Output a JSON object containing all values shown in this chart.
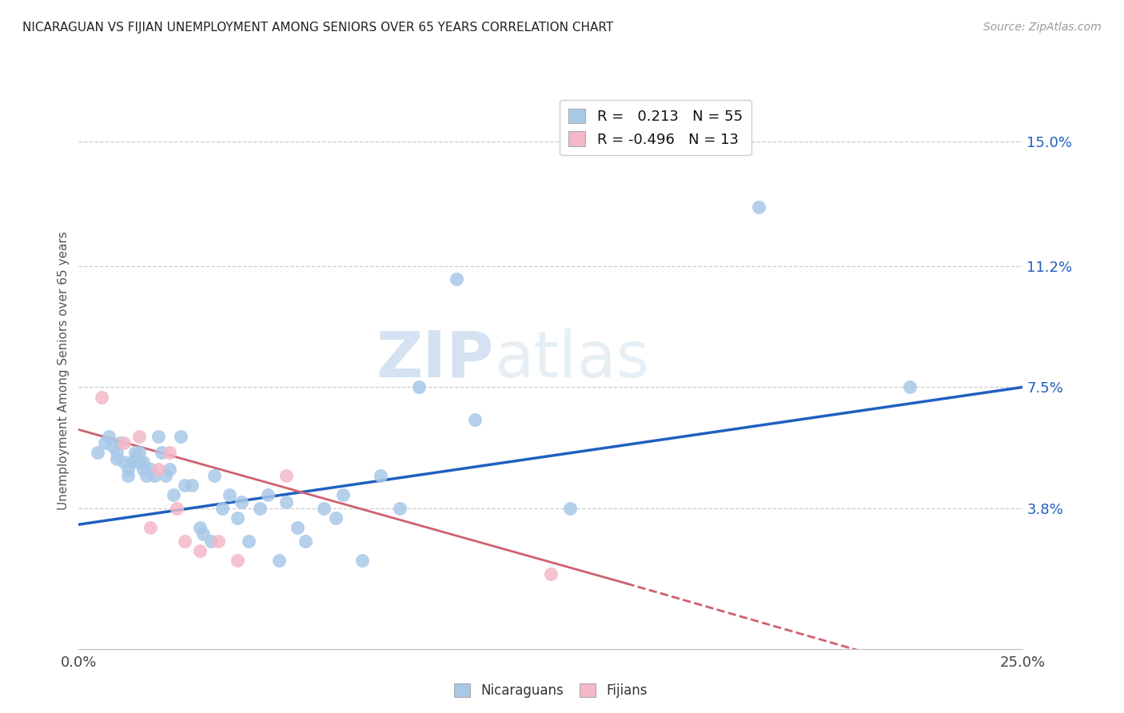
{
  "title": "NICARAGUAN VS FIJIAN UNEMPLOYMENT AMONG SENIORS OVER 65 YEARS CORRELATION CHART",
  "source": "Source: ZipAtlas.com",
  "ylabel": "Unemployment Among Seniors over 65 years",
  "xlim": [
    0.0,
    0.25
  ],
  "ylim": [
    -0.005,
    0.165
  ],
  "xtick_positions": [
    0.0,
    0.05,
    0.1,
    0.15,
    0.2,
    0.25
  ],
  "xticklabels": [
    "0.0%",
    "",
    "",
    "",
    "",
    "25.0%"
  ],
  "ytick_right": [
    0.038,
    0.075,
    0.112,
    0.15
  ],
  "ytick_right_labels": [
    "3.8%",
    "7.5%",
    "11.2%",
    "15.0%"
  ],
  "legend_r1": "R =   0.213   N = 55",
  "legend_r2": "R = -0.496   N = 13",
  "nicaraguan_color": "#a8c8e8",
  "fijian_color": "#f4b8c8",
  "regression_blue": "#2060c0",
  "regression_pink": "#d06070",
  "watermark_zip": "ZIP",
  "watermark_atlas": "atlas",
  "nicaraguan_x": [
    0.005,
    0.007,
    0.008,
    0.009,
    0.01,
    0.01,
    0.011,
    0.012,
    0.013,
    0.013,
    0.014,
    0.015,
    0.015,
    0.016,
    0.016,
    0.017,
    0.017,
    0.018,
    0.019,
    0.02,
    0.021,
    0.022,
    0.023,
    0.024,
    0.025,
    0.027,
    0.028,
    0.03,
    0.032,
    0.033,
    0.035,
    0.036,
    0.038,
    0.04,
    0.042,
    0.043,
    0.045,
    0.048,
    0.05,
    0.053,
    0.055,
    0.058,
    0.06,
    0.065,
    0.068,
    0.07,
    0.075,
    0.08,
    0.085,
    0.09,
    0.1,
    0.105,
    0.13,
    0.18,
    0.22
  ],
  "nicaraguan_y": [
    0.055,
    0.058,
    0.06,
    0.057,
    0.055,
    0.053,
    0.058,
    0.052,
    0.05,
    0.048,
    0.052,
    0.053,
    0.055,
    0.055,
    0.052,
    0.052,
    0.05,
    0.048,
    0.05,
    0.048,
    0.06,
    0.055,
    0.048,
    0.05,
    0.042,
    0.06,
    0.045,
    0.045,
    0.032,
    0.03,
    0.028,
    0.048,
    0.038,
    0.042,
    0.035,
    0.04,
    0.028,
    0.038,
    0.042,
    0.022,
    0.04,
    0.032,
    0.028,
    0.038,
    0.035,
    0.042,
    0.022,
    0.048,
    0.038,
    0.075,
    0.108,
    0.065,
    0.038,
    0.13,
    0.075
  ],
  "fijian_x": [
    0.006,
    0.012,
    0.016,
    0.019,
    0.021,
    0.024,
    0.026,
    0.028,
    0.032,
    0.037,
    0.042,
    0.055,
    0.125
  ],
  "fijian_y": [
    0.072,
    0.058,
    0.06,
    0.032,
    0.05,
    0.055,
    0.038,
    0.028,
    0.025,
    0.028,
    0.022,
    0.048,
    0.018
  ],
  "blue_line_x": [
    0.0,
    0.25
  ],
  "blue_line_y": [
    0.033,
    0.075
  ],
  "pink_line_x": [
    0.0,
    0.145
  ],
  "pink_line_y": [
    0.062,
    0.015
  ]
}
